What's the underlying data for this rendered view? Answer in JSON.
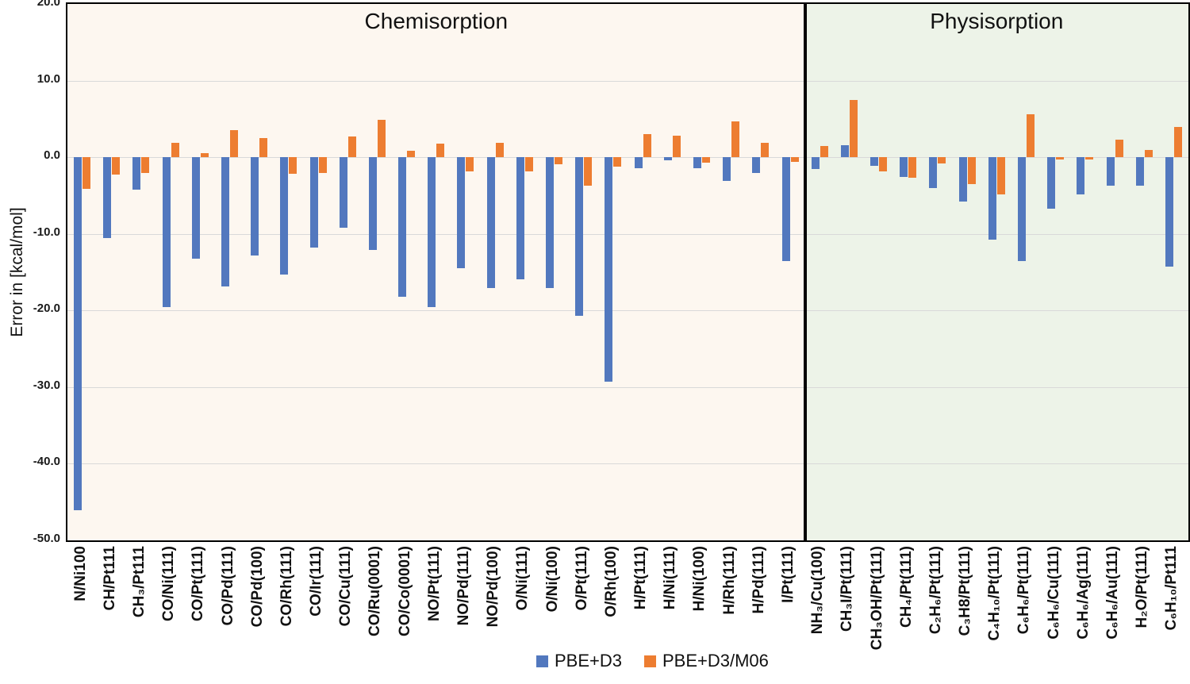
{
  "figure": {
    "sections": [
      {
        "label": "Chemisorption",
        "background": "#FDF7F0",
        "category_count": 25
      },
      {
        "label": "Physisorption",
        "background": "#EDF3E8",
        "category_count": 13
      }
    ],
    "y_axis": {
      "title": "Error in [kcal/mol]",
      "tick_values": [
        20,
        10,
        0,
        -10,
        -20,
        -30,
        -40,
        -50
      ],
      "tick_labels": [
        "20.0",
        "10.0",
        "0.0",
        "-10.0",
        "-20.0",
        "-30.0",
        "-40.0",
        "-50.0"
      ]
    },
    "grid_color": "#D9D9D9",
    "border_color": "#000000"
  },
  "chart_data": {
    "type": "bar",
    "title": "",
    "xlabel": "",
    "ylabel": "Error in [kcal/mol]",
    "ylim": [
      -50,
      20
    ],
    "grid": true,
    "legend_position": "bottom-center",
    "categories": [
      "N/Ni100",
      "CH/Pt111",
      "CH₃/Pt111",
      "CO/Ni(111)",
      "CO/Pt(111)",
      "CO/Pd(111)",
      "CO/Pd(100)",
      "CO/Rh(111)",
      "CO/Ir(111)",
      "CO/Cu(111)",
      "CO/Ru(0001)",
      "CO/Co(0001)",
      "NO/Pt(111)",
      "NO/Pd(111)",
      "NO/Pd(100)",
      "O/Ni(111)",
      "O/Ni(100)",
      "O/Pt(111)",
      "O/Rh(100)",
      "H/Pt(111)",
      "H/Ni(111)",
      "H/Ni(100)",
      "H/Rh(111)",
      "H/Pd(111)",
      "I/Pt(111)",
      "NH₃/Cu(100)",
      "CH₃I/Pt(111)",
      "CH₃OH/Pt(111)",
      "CH₄/Pt(111)",
      "C₂H₆/Pt(111)",
      "C₃H8/Pt(111)",
      "C₄H₁₀/Pt(111)",
      "C₆H₆/Pt(111)",
      "C₆H₆/Cu(111)",
      "C₆H₆/Ag(111)",
      "C₆H₆/Au(111)",
      "H₂O/Pt(111)",
      "C₆H₁₀/Pt111"
    ],
    "section_of_category": {
      "Chemisorption": [
        0,
        24
      ],
      "Physisorption": [
        25,
        37
      ]
    },
    "series": [
      {
        "name": "PBE+D3",
        "color": "#5278BE",
        "values": [
          -46.1,
          -10.5,
          -4.2,
          -19.6,
          -13.2,
          -16.9,
          -12.8,
          -15.3,
          -11.8,
          -9.2,
          -12.1,
          -18.2,
          -19.6,
          -14.5,
          -17.1,
          -15.9,
          -17.1,
          -20.7,
          -29.3,
          -1.4,
          -0.4,
          -1.4,
          -3.1,
          -2.1,
          -13.6,
          -1.5,
          1.6,
          -1.1,
          -2.6,
          -4.0,
          -5.8,
          -10.8,
          -13.6,
          -6.7,
          -4.9,
          -3.7,
          -3.7,
          -14.3
        ]
      },
      {
        "name": "PBE+D3/M06",
        "color": "#ED7D31",
        "values": [
          -4.1,
          -2.3,
          -2.1,
          1.9,
          0.5,
          3.5,
          2.5,
          -2.2,
          -2.1,
          2.7,
          4.9,
          0.8,
          1.8,
          -1.9,
          1.9,
          -1.9,
          -0.9,
          -3.7,
          -1.2,
          3.0,
          2.8,
          -0.7,
          4.7,
          1.9,
          -0.6,
          1.5,
          7.5,
          -1.8,
          -2.7,
          -0.8,
          -3.5,
          -4.9,
          5.6,
          -0.3,
          -0.3,
          2.3,
          0.9,
          3.9
        ]
      }
    ]
  }
}
